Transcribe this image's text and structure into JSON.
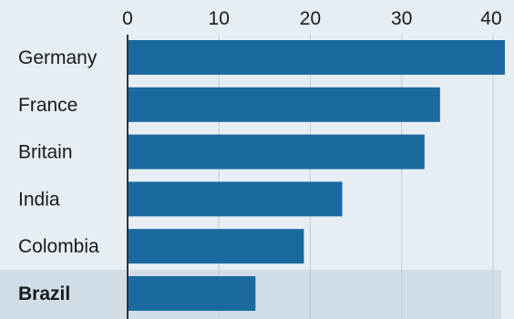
{
  "chart_data": {
    "type": "bar",
    "orientation": "horizontal",
    "categories": [
      "Germany",
      "France",
      "Britain",
      "India",
      "Colombia",
      "Brazil"
    ],
    "values": [
      41.3,
      34.2,
      32.5,
      23.5,
      19.3,
      14.0
    ],
    "highlight_category": "Brazil",
    "xlim": [
      0,
      41.5
    ],
    "xticks": [
      0,
      10,
      20,
      30,
      40
    ],
    "xtick_labels": [
      "0",
      "10",
      "20",
      "30",
      "40"
    ],
    "axis_position": "top",
    "grid": true,
    "title": "",
    "xlabel": "",
    "ylabel": ""
  },
  "colors": {
    "background": "#e6eef4",
    "highlight_band": "#d0dce6",
    "bar": "#1a6aa0",
    "grid": "#c3d0da",
    "axis": "#333333",
    "text": "#1a1a1a"
  }
}
